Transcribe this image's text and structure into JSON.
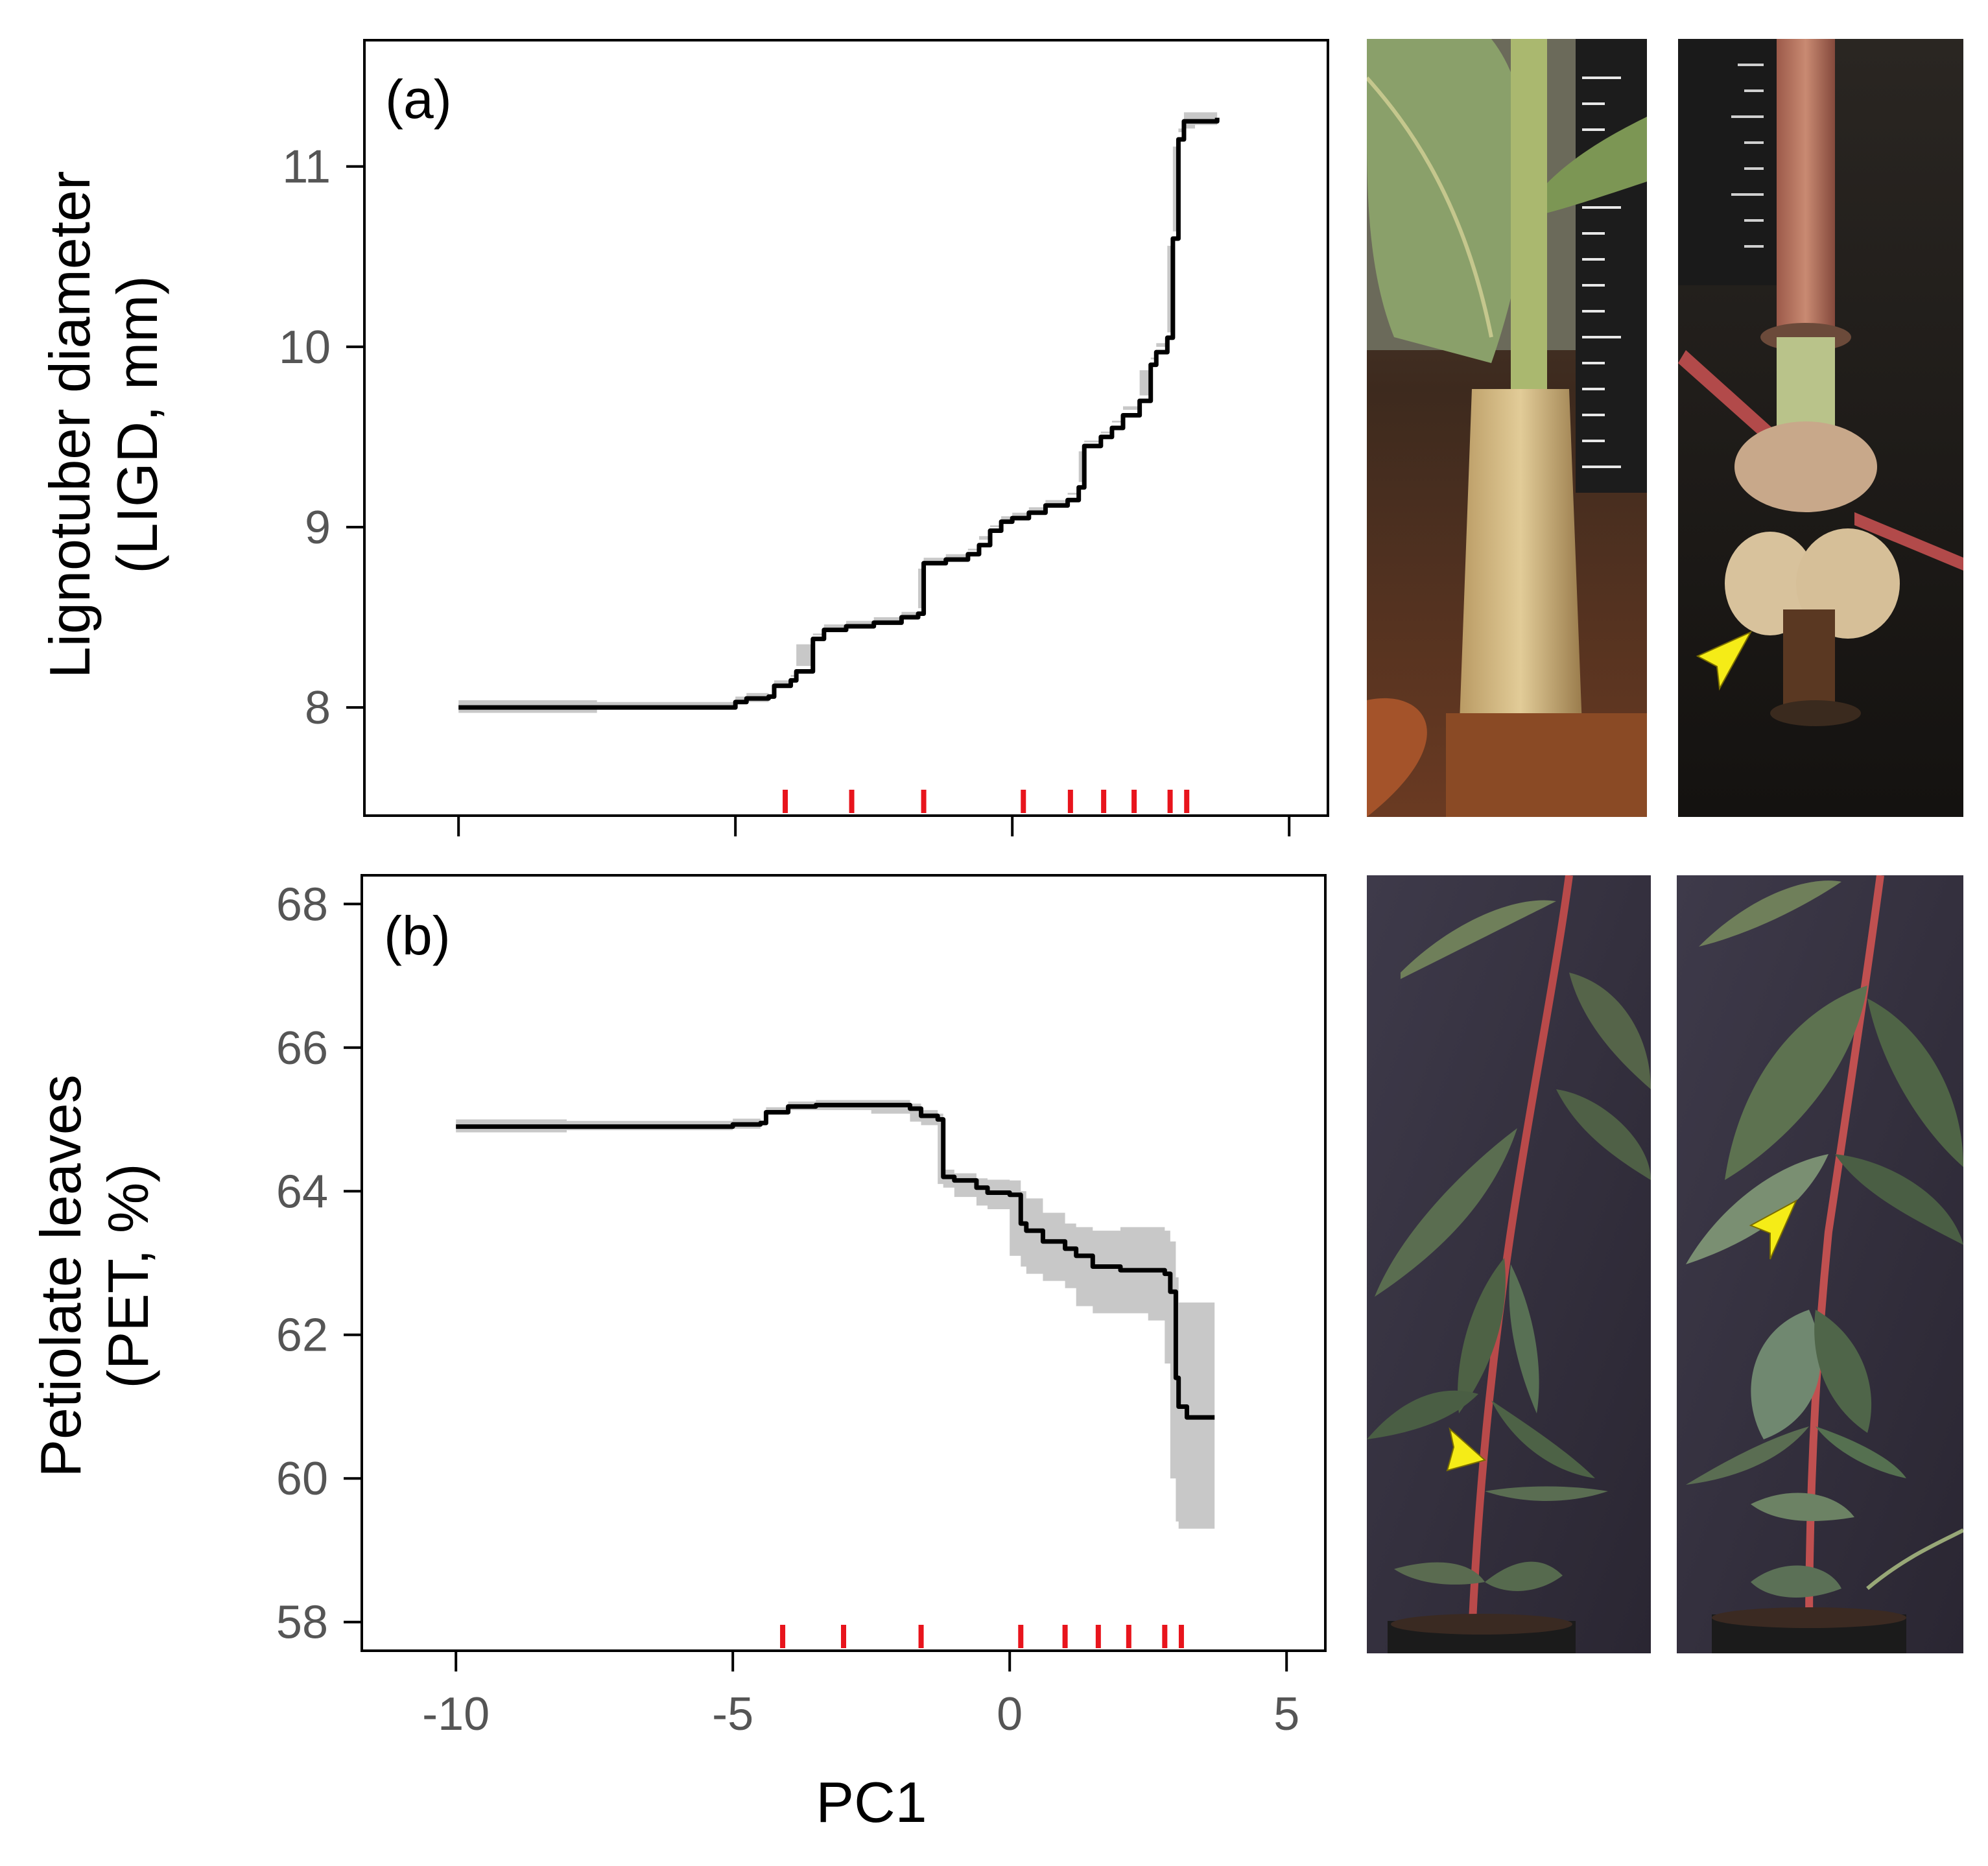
{
  "chart_data": [
    {
      "type": "line",
      "panel_label": "(a)",
      "xlabel": "PC1",
      "ylabel": [
        "Lignotuber diameter",
        "(LIGD, mm)"
      ],
      "xlim": [
        -11.7,
        5.7
      ],
      "ylim": [
        7.4,
        11.7
      ],
      "xticks": [
        -10,
        -5,
        0,
        5
      ],
      "yticks": [
        8,
        9,
        10,
        11
      ],
      "x": [
        -10.0,
        -7.5,
        -5.0,
        -4.8,
        -4.4,
        -4.3,
        -4.0,
        -3.9,
        -3.6,
        -3.4,
        -3.0,
        -2.5,
        -2.0,
        -1.7,
        -1.6,
        -1.2,
        -0.8,
        -0.6,
        -0.4,
        -0.2,
        0.0,
        0.3,
        0.6,
        1.0,
        1.2,
        1.3,
        1.6,
        1.8,
        2.0,
        2.3,
        2.5,
        2.6,
        2.8,
        2.9,
        3.0,
        3.1,
        3.3,
        3.7
      ],
      "y": [
        8.0,
        8.0,
        8.03,
        8.05,
        8.06,
        8.12,
        8.15,
        8.2,
        8.38,
        8.43,
        8.45,
        8.47,
        8.5,
        8.52,
        8.8,
        8.82,
        8.85,
        8.9,
        8.98,
        9.03,
        9.05,
        9.08,
        9.12,
        9.15,
        9.22,
        9.45,
        9.5,
        9.55,
        9.62,
        9.7,
        9.9,
        9.97,
        10.05,
        10.6,
        11.15,
        11.25,
        11.25,
        11.27
      ],
      "y_lower": [
        7.96,
        7.97,
        8.0,
        8.02,
        8.03,
        8.09,
        8.12,
        8.17,
        8.35,
        8.4,
        8.42,
        8.44,
        8.47,
        8.49,
        8.77,
        8.79,
        8.82,
        8.87,
        8.95,
        9.0,
        9.02,
        9.05,
        9.09,
        9.12,
        9.19,
        9.42,
        9.47,
        9.52,
        9.59,
        9.67,
        9.87,
        9.94,
        10.02,
        10.56,
        11.11,
        11.21,
        11.21,
        11.23
      ],
      "y_upper": [
        8.04,
        8.03,
        8.06,
        8.08,
        8.09,
        8.15,
        8.18,
        8.23,
        8.41,
        8.46,
        8.48,
        8.5,
        8.53,
        8.55,
        8.83,
        8.85,
        8.88,
        8.93,
        9.01,
        9.06,
        9.08,
        9.11,
        9.15,
        9.18,
        9.25,
        9.48,
        9.53,
        9.58,
        9.65,
        9.73,
        9.93,
        10.0,
        10.08,
        10.64,
        11.19,
        11.3,
        11.3,
        11.31
      ],
      "rug": [
        -4.1,
        -2.9,
        -1.6,
        0.2,
        1.05,
        1.65,
        2.2,
        2.85,
        3.15
      ]
    },
    {
      "type": "line",
      "panel_label": "(b)",
      "xlabel": "PC1",
      "ylabel": [
        "Petiolate leaves",
        "(PET, %)"
      ],
      "xlim": [
        -11.7,
        5.7
      ],
      "ylim": [
        57.6,
        68.4
      ],
      "xticks": [
        -10,
        -5,
        0,
        5
      ],
      "xticklabels": [
        "-10",
        "-5",
        "0",
        "5"
      ],
      "yticks": [
        58,
        60,
        62,
        64,
        66,
        68
      ],
      "x": [
        -10.0,
        -8.0,
        -5.0,
        -4.5,
        -4.4,
        -4.0,
        -3.5,
        -2.5,
        -1.8,
        -1.6,
        -1.3,
        -1.2,
        -1.0,
        -0.6,
        -0.4,
        0.0,
        0.2,
        0.3,
        0.6,
        1.0,
        1.2,
        1.5,
        2.0,
        2.5,
        2.8,
        2.9,
        3.0,
        3.05,
        3.2,
        3.7
      ],
      "y": [
        64.9,
        64.9,
        64.93,
        64.95,
        65.1,
        65.18,
        65.2,
        65.2,
        65.15,
        65.05,
        65.0,
        64.2,
        64.15,
        64.05,
        63.98,
        63.95,
        63.55,
        63.45,
        63.3,
        63.2,
        63.1,
        62.95,
        62.9,
        62.9,
        62.85,
        62.6,
        61.4,
        61.0,
        60.85,
        60.85
      ],
      "y_lower": [
        64.8,
        64.82,
        64.85,
        64.87,
        65.03,
        65.11,
        65.13,
        65.13,
        65.08,
        64.97,
        64.92,
        64.1,
        64.05,
        63.92,
        63.8,
        63.75,
        63.1,
        62.95,
        62.85,
        62.75,
        62.65,
        62.4,
        62.3,
        62.3,
        62.2,
        61.6,
        60.0,
        59.4,
        59.3,
        59.3
      ],
      "y_upper": [
        65.0,
        64.98,
        65.01,
        65.03,
        65.17,
        65.25,
        65.27,
        65.27,
        65.22,
        65.13,
        65.08,
        64.3,
        64.25,
        64.18,
        64.16,
        64.15,
        64.0,
        63.9,
        63.7,
        63.55,
        63.5,
        63.45,
        63.5,
        63.5,
        63.45,
        63.3,
        62.8,
        62.45,
        62.45,
        62.45
      ],
      "rug": [
        -4.1,
        -3.0,
        -1.6,
        0.2,
        1.0,
        1.6,
        2.15,
        2.8,
        3.1
      ]
    }
  ],
  "photos": [
    {
      "name": "photo-a-left",
      "arrow": false
    },
    {
      "name": "photo-a-right",
      "arrow": true
    },
    {
      "name": "photo-b-left",
      "arrow": true
    },
    {
      "name": "photo-b-right",
      "arrow": true
    }
  ]
}
